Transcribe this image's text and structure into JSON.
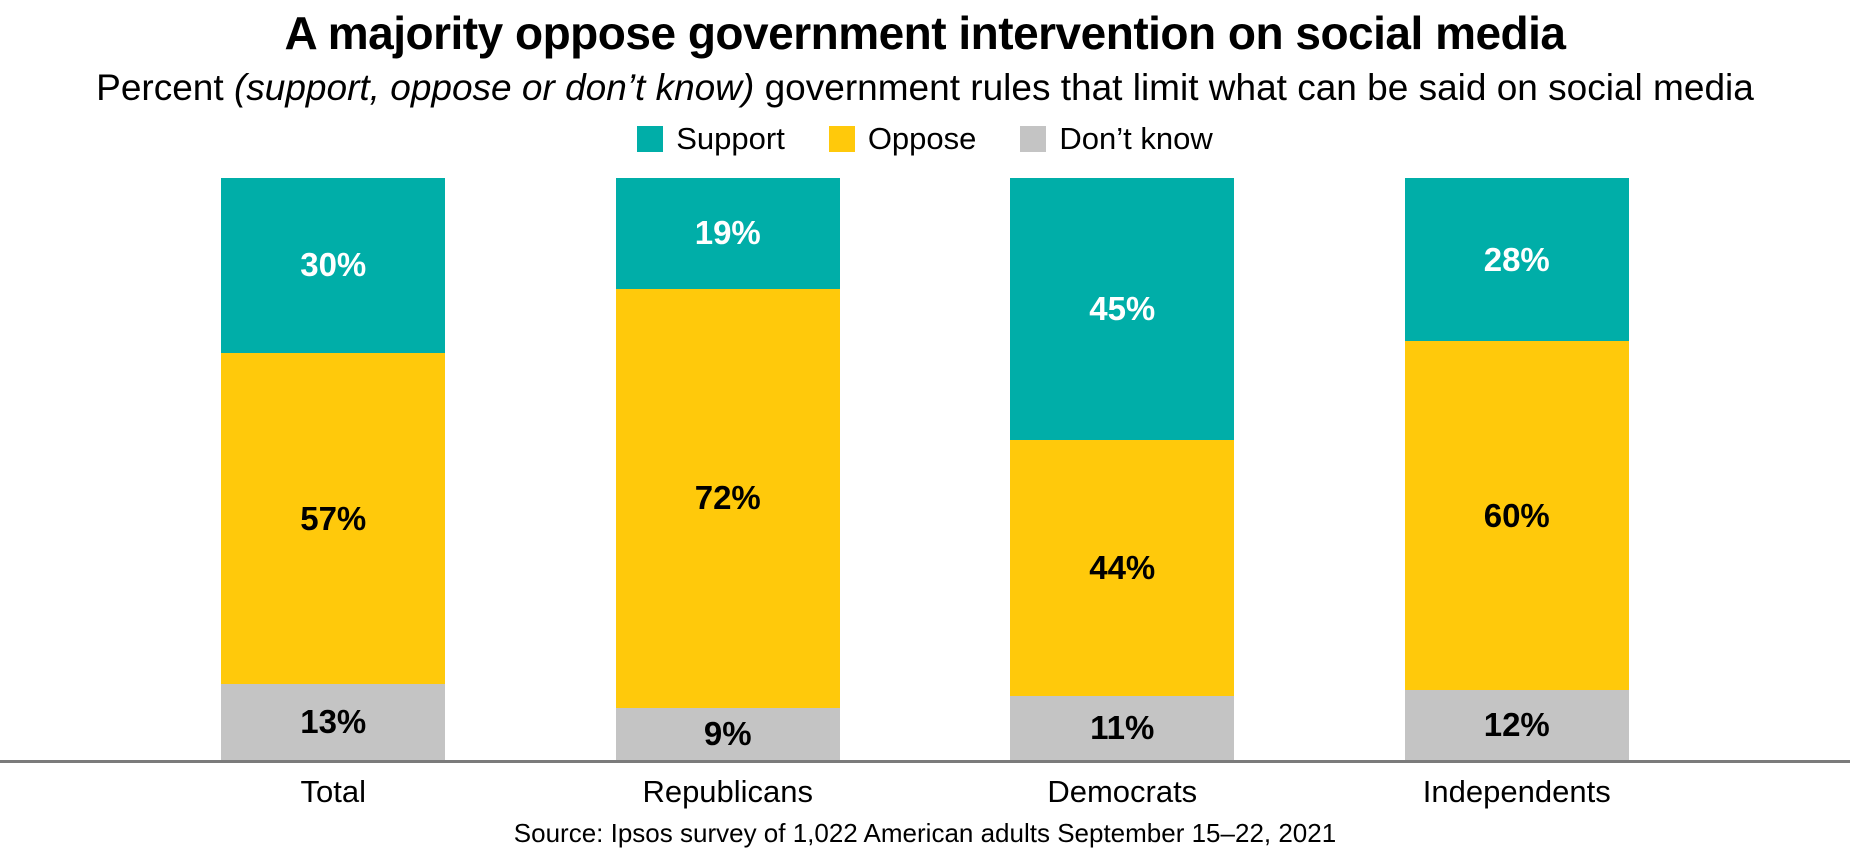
{
  "header": {
    "title": "A majority oppose government intervention on social media",
    "subtitle_prefix": "Percent ",
    "subtitle_italic": "(support, oppose or don’t know)",
    "subtitle_suffix": " government rules that limit what can be said on social media"
  },
  "legend": [
    {
      "label": "Support",
      "color": "#00AEA8"
    },
    {
      "label": "Oppose",
      "color": "#FFC90B"
    },
    {
      "label": "Don’t know",
      "color": "#C4C4C4"
    }
  ],
  "source": "Source: Ipsos survey of 1,022 American adults September 15–22, 2021",
  "colors": {
    "support_teal": "#00AEA8",
    "oppose_yellow": "#FFC90B",
    "dont_know_gray": "#C4C4C4",
    "axis_line_gray": "#7B7B7B",
    "label_on_teal": "#FFFFFF",
    "label_on_yellow": "#000000",
    "label_on_gray": "#000000"
  },
  "chart_data": {
    "type": "bar",
    "stacked": true,
    "percent_total": 100,
    "categories": [
      "Total",
      "Republicans",
      "Democrats",
      "Independents"
    ],
    "series": [
      {
        "name": "Support",
        "color": "#00AEA8",
        "text_color": "#FFFFFF",
        "values": [
          30,
          19,
          45,
          28
        ]
      },
      {
        "name": "Oppose",
        "color": "#FFC90B",
        "text_color": "#000000",
        "values": [
          57,
          72,
          44,
          60
        ]
      },
      {
        "name": "Don’t know",
        "color": "#C4C4C4",
        "text_color": "#000000",
        "values": [
          13,
          9,
          11,
          12
        ]
      }
    ],
    "value_suffix": "%",
    "title": "A majority oppose government intervention on social media",
    "subtitle": "Percent (support, oppose or don’t know) government rules that limit what can be said on social media",
    "xlabel": "",
    "ylabel": "",
    "ylim": [
      0,
      100
    ],
    "grid": false,
    "legend_position": "top",
    "bar_label_placement": "center"
  }
}
